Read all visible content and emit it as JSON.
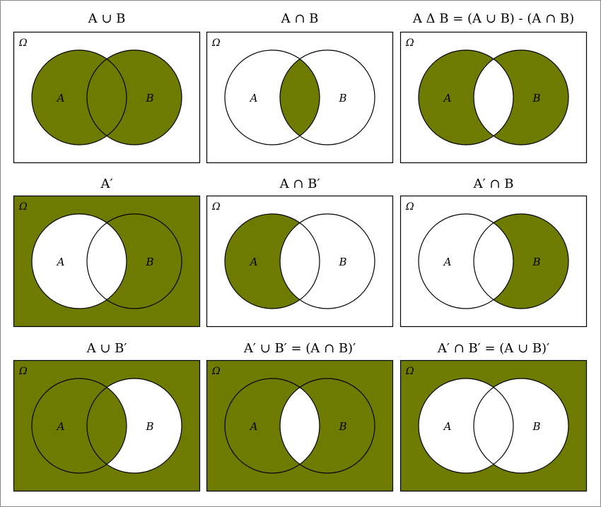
{
  "colors": {
    "fill": "#6f7b00",
    "background": "#ffffff",
    "stroke": "#000000"
  },
  "universe_label": "Ω",
  "set_a_label": "A",
  "set_b_label": "B",
  "panels": [
    {
      "title": "A ∪ B",
      "regions": {
        "a_only": true,
        "both": true,
        "b_only": true,
        "outside": false
      }
    },
    {
      "title": "A ∩ B",
      "regions": {
        "a_only": false,
        "both": true,
        "b_only": false,
        "outside": false
      }
    },
    {
      "title": "A Δ B = (A ∪ B) - (A ∩ B)",
      "regions": {
        "a_only": true,
        "both": false,
        "b_only": true,
        "outside": false
      }
    },
    {
      "title": "A′",
      "regions": {
        "a_only": false,
        "both": false,
        "b_only": true,
        "outside": true
      }
    },
    {
      "title": "A ∩ B′",
      "regions": {
        "a_only": true,
        "both": false,
        "b_only": false,
        "outside": false
      }
    },
    {
      "title": "A′ ∩ B",
      "regions": {
        "a_only": false,
        "both": false,
        "b_only": true,
        "outside": false
      }
    },
    {
      "title": "A ∪ B′",
      "regions": {
        "a_only": true,
        "both": true,
        "b_only": false,
        "outside": true
      }
    },
    {
      "title": "A′ ∪ B′ = (A ∩ B)′",
      "regions": {
        "a_only": true,
        "both": false,
        "b_only": true,
        "outside": true
      }
    },
    {
      "title": "A′ ∩ B′ = (A ∪ B)′",
      "regions": {
        "a_only": false,
        "both": false,
        "b_only": false,
        "outside": true
      }
    }
  ]
}
